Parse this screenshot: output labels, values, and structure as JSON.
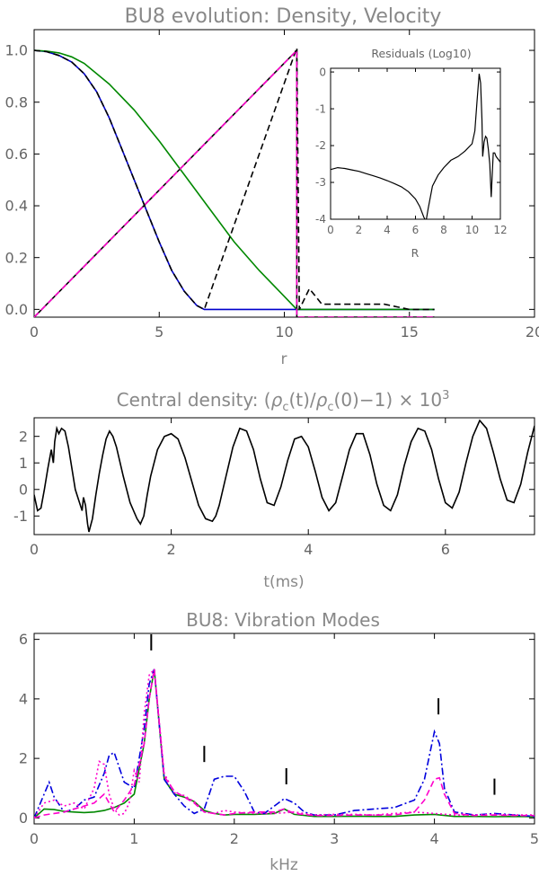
{
  "chart_data": [
    {
      "type": "line",
      "title": "BU8 evolution: Density, Velocity",
      "xlabel": "r",
      "ylabel": "",
      "xlim": [
        0,
        20
      ],
      "ylim": [
        -0.03,
        1.08
      ],
      "xticks": [
        0,
        5,
        10,
        15,
        20
      ],
      "yticks": [
        0.0,
        0.2,
        0.4,
        0.6,
        0.8,
        1.0
      ],
      "grid": false,
      "series": [
        {
          "style": "solid",
          "color": "#0000cc",
          "x": [
            0,
            0.5,
            1,
            1.5,
            2,
            2.5,
            3,
            3.5,
            4,
            4.5,
            5,
            5.5,
            6,
            6.5,
            6.8,
            16
          ],
          "y": [
            1.0,
            0.995,
            0.98,
            0.955,
            0.91,
            0.84,
            0.74,
            0.62,
            0.5,
            0.38,
            0.26,
            0.15,
            0.07,
            0.015,
            0.0,
            0.0
          ]
        },
        {
          "style": "solid",
          "color": "#008800",
          "x": [
            0,
            0.5,
            1,
            1.5,
            2,
            3,
            4,
            5,
            6,
            7,
            8,
            9,
            10,
            10.5,
            16
          ],
          "y": [
            1.0,
            0.997,
            0.99,
            0.975,
            0.95,
            0.87,
            0.77,
            0.65,
            0.52,
            0.39,
            0.26,
            0.15,
            0.05,
            0.0,
            0.0
          ]
        },
        {
          "style": "solid",
          "color": "#000000",
          "x": [
            0,
            10.5,
            10.5,
            16
          ],
          "y": [
            -0.03,
            1.0,
            -0.03,
            -0.03
          ]
        },
        {
          "style": "dashed",
          "color": "#000000",
          "x": [
            0,
            0.5,
            1,
            1.5,
            2,
            2.5,
            3,
            3.5,
            4,
            4.5,
            5,
            5.5,
            6,
            6.5,
            6.8,
            10.5,
            10.6,
            11,
            11.5,
            12,
            13,
            14,
            14.5,
            15,
            16
          ],
          "y": [
            1.0,
            0.995,
            0.98,
            0.955,
            0.91,
            0.84,
            0.74,
            0.62,
            0.5,
            0.38,
            0.26,
            0.15,
            0.07,
            0.015,
            0.0,
            1.01,
            0.0,
            0.08,
            0.02,
            0.02,
            0.02,
            0.02,
            0.01,
            0.0,
            0.0
          ]
        },
        {
          "style": "dashed",
          "color": "#ff00cc",
          "x": [
            0,
            10.5,
            10.5,
            16
          ],
          "y": [
            -0.03,
            1.0,
            -0.03,
            -0.03
          ]
        }
      ]
    },
    {
      "type": "line",
      "title": "Residuals (Log10)",
      "xlabel": "R",
      "ylabel": "",
      "xlim": [
        0,
        12
      ],
      "ylim": [
        -4,
        0.1
      ],
      "xticks": [
        0,
        2,
        4,
        6,
        8,
        10,
        12
      ],
      "yticks": [
        -4,
        -3,
        -2,
        -1,
        0
      ],
      "series": [
        {
          "style": "solid",
          "color": "#000000",
          "x": [
            0,
            0.5,
            1,
            1.5,
            2,
            2.5,
            3,
            3.5,
            4,
            4.5,
            5,
            5.5,
            6,
            6.3,
            6.6,
            6.75,
            6.9,
            7.2,
            7.6,
            8,
            8.5,
            9,
            9.5,
            10,
            10.2,
            10.35,
            10.5,
            10.6,
            10.7,
            10.75,
            10.85,
            10.95,
            11.05,
            11.15,
            11.25,
            11.35,
            11.45,
            11.5,
            11.6,
            11.7,
            11.8,
            11.9,
            12
          ],
          "y": [
            -2.65,
            -2.6,
            -2.62,
            -2.66,
            -2.7,
            -2.76,
            -2.82,
            -2.88,
            -2.95,
            -3.03,
            -3.12,
            -3.25,
            -3.45,
            -3.65,
            -3.95,
            -4.05,
            -3.7,
            -3.1,
            -2.8,
            -2.6,
            -2.4,
            -2.3,
            -2.15,
            -1.95,
            -1.6,
            -0.8,
            -0.05,
            -0.3,
            -1.3,
            -2.3,
            -1.9,
            -1.75,
            -1.8,
            -2.1,
            -2.5,
            -3.4,
            -2.6,
            -2.2,
            -2.2,
            -2.3,
            -2.35,
            -2.4,
            -2.45
          ]
        }
      ]
    },
    {
      "type": "line",
      "title": "Central density:  (ρc(t)/ρc(0)−1) × 10³",
      "title_rich": {
        "prefix": "Central density:  (",
        "rho1": "ρ",
        "sub1": "c",
        "mid": "(t)/",
        "rho2": "ρ",
        "sub2": "c",
        "suffix": "(0)−1) × 10",
        "sup": "3"
      },
      "xlabel": "t(ms)",
      "ylabel": "",
      "xlim": [
        0,
        7.3
      ],
      "ylim": [
        -1.7,
        2.7
      ],
      "xticks": [
        0,
        2,
        4,
        6
      ],
      "yticks": [
        -1,
        0,
        1,
        2
      ],
      "series": [
        {
          "style": "solid",
          "color": "#000000",
          "x": [
            0,
            0.05,
            0.1,
            0.15,
            0.2,
            0.25,
            0.28,
            0.3,
            0.33,
            0.36,
            0.4,
            0.45,
            0.5,
            0.55,
            0.6,
            0.65,
            0.7,
            0.72,
            0.75,
            0.78,
            0.8,
            0.85,
            0.9,
            0.95,
            1.0,
            1.05,
            1.1,
            1.15,
            1.2,
            1.3,
            1.4,
            1.5,
            1.55,
            1.6,
            1.65,
            1.7,
            1.8,
            1.9,
            2.0,
            2.1,
            2.2,
            2.3,
            2.4,
            2.5,
            2.6,
            2.65,
            2.7,
            2.8,
            2.9,
            3.0,
            3.1,
            3.2,
            3.3,
            3.4,
            3.5,
            3.6,
            3.7,
            3.8,
            3.9,
            4.0,
            4.1,
            4.2,
            4.3,
            4.4,
            4.5,
            4.6,
            4.7,
            4.8,
            4.9,
            5.0,
            5.1,
            5.2,
            5.3,
            5.4,
            5.5,
            5.6,
            5.7,
            5.8,
            5.9,
            6.0,
            6.1,
            6.2,
            6.3,
            6.4,
            6.5,
            6.6,
            6.7,
            6.8,
            6.9,
            7.0,
            7.1,
            7.2,
            7.3
          ],
          "y": [
            -0.2,
            -0.8,
            -0.7,
            0.0,
            0.8,
            1.5,
            1.0,
            1.8,
            2.3,
            2.1,
            2.3,
            2.2,
            1.6,
            0.8,
            0.0,
            -0.4,
            -0.8,
            -0.3,
            -0.6,
            -1.3,
            -1.6,
            -1.1,
            -0.2,
            0.6,
            1.3,
            1.9,
            2.2,
            2.0,
            1.6,
            0.5,
            -0.5,
            -1.1,
            -1.3,
            -1.0,
            -0.2,
            0.5,
            1.5,
            2.0,
            2.1,
            1.9,
            1.2,
            0.3,
            -0.6,
            -1.1,
            -1.2,
            -1.0,
            -0.6,
            0.5,
            1.6,
            2.3,
            2.2,
            1.5,
            0.4,
            -0.5,
            -0.6,
            0.1,
            1.1,
            1.9,
            2.0,
            1.6,
            0.7,
            -0.3,
            -0.8,
            -0.5,
            0.5,
            1.5,
            2.1,
            2.1,
            1.3,
            0.2,
            -0.6,
            -0.8,
            -0.2,
            0.9,
            1.8,
            2.3,
            2.2,
            1.5,
            0.4,
            -0.5,
            -0.7,
            -0.1,
            1.0,
            2.0,
            2.6,
            2.3,
            1.4,
            0.4,
            -0.4,
            -0.5,
            0.2,
            1.4,
            2.4
          ]
        }
      ]
    },
    {
      "type": "line",
      "title": "BU8: Vibration Modes",
      "xlabel": "kHz",
      "ylabel": "",
      "xlim": [
        0,
        5
      ],
      "ylim": [
        -0.2,
        6.2
      ],
      "xticks": [
        0,
        1,
        2,
        3,
        4,
        5
      ],
      "yticks": [
        0,
        2,
        4,
        6
      ],
      "annotations": {
        "marker": "|",
        "x": [
          1.17,
          1.7,
          2.52,
          4.04,
          4.6
        ],
        "y": [
          5.9,
          2.15,
          1.4,
          3.75,
          1.05
        ]
      },
      "series": [
        {
          "style": "solid",
          "color": "#008800",
          "x": [
            0,
            0.1,
            0.2,
            0.3,
            0.4,
            0.5,
            0.6,
            0.7,
            0.8,
            0.9,
            1.0,
            1.1,
            1.15,
            1.2,
            1.3,
            1.4,
            1.5,
            1.6,
            1.7,
            1.8,
            1.9,
            2.0,
            2.2,
            2.4,
            2.5,
            2.6,
            2.8,
            3.0,
            3.2,
            3.4,
            3.6,
            3.8,
            4.0,
            4.2,
            4.4,
            4.6,
            4.8,
            5.0
          ],
          "y": [
            0,
            0.3,
            0.28,
            0.22,
            0.2,
            0.18,
            0.2,
            0.25,
            0.35,
            0.5,
            0.8,
            2.5,
            4.0,
            5.0,
            1.3,
            0.8,
            0.7,
            0.55,
            0.25,
            0.15,
            0.1,
            0.12,
            0.12,
            0.15,
            0.3,
            0.12,
            0.05,
            0.05,
            0.06,
            0.05,
            0.05,
            0.1,
            0.12,
            0.05,
            0.05,
            0.04,
            0.05,
            0.04
          ]
        },
        {
          "style": "dashdot",
          "color": "#0000dd",
          "x": [
            0,
            0.1,
            0.15,
            0.2,
            0.3,
            0.4,
            0.5,
            0.6,
            0.7,
            0.75,
            0.8,
            0.85,
            0.9,
            1.0,
            1.1,
            1.15,
            1.2,
            1.3,
            1.4,
            1.5,
            1.6,
            1.7,
            1.8,
            1.9,
            2.0,
            2.1,
            2.2,
            2.3,
            2.4,
            2.5,
            2.6,
            2.7,
            2.8,
            2.9,
            3.0,
            3.2,
            3.4,
            3.6,
            3.8,
            3.9,
            4.0,
            4.05,
            4.1,
            4.2,
            4.3,
            4.4,
            4.6,
            4.8,
            5.0
          ],
          "y": [
            0,
            0.8,
            1.2,
            0.7,
            0.2,
            0.3,
            0.6,
            0.7,
            1.5,
            2.1,
            2.2,
            1.7,
            1.2,
            1.0,
            3.0,
            4.5,
            5.0,
            1.3,
            0.8,
            0.4,
            0.15,
            0.3,
            1.3,
            1.4,
            1.4,
            0.9,
            0.2,
            0.15,
            0.4,
            0.65,
            0.5,
            0.2,
            0.1,
            0.1,
            0.1,
            0.25,
            0.3,
            0.35,
            0.6,
            1.3,
            2.9,
            2.5,
            1.0,
            0.2,
            0.15,
            0.1,
            0.15,
            0.1,
            0.05
          ]
        },
        {
          "style": "dashed",
          "color": "#ff00cc",
          "x": [
            0,
            0.1,
            0.2,
            0.3,
            0.4,
            0.5,
            0.6,
            0.7,
            0.8,
            0.9,
            1.0,
            1.1,
            1.15,
            1.2,
            1.3,
            1.4,
            1.5,
            1.6,
            1.7,
            1.8,
            1.9,
            2.0,
            2.2,
            2.4,
            2.5,
            2.6,
            2.8,
            3.0,
            3.2,
            3.4,
            3.6,
            3.8,
            3.9,
            4.0,
            4.05,
            4.1,
            4.2,
            4.4,
            4.6,
            4.8,
            5.0
          ],
          "y": [
            0,
            0.1,
            0.15,
            0.2,
            0.3,
            0.4,
            0.5,
            0.8,
            0.2,
            0.6,
            1.1,
            2.5,
            4.0,
            5.0,
            1.4,
            0.9,
            0.7,
            0.5,
            0.2,
            0.15,
            0.1,
            0.15,
            0.2,
            0.2,
            0.3,
            0.15,
            0.08,
            0.08,
            0.1,
            0.1,
            0.1,
            0.2,
            0.6,
            1.3,
            1.35,
            0.8,
            0.15,
            0.08,
            0.1,
            0.08,
            0.08
          ]
        },
        {
          "style": "dotted",
          "color": "#ff00cc",
          "x": [
            0,
            0.1,
            0.2,
            0.3,
            0.4,
            0.5,
            0.6,
            0.65,
            0.7,
            0.75,
            0.8,
            0.85,
            0.9,
            0.95,
            1.0,
            1.05,
            1.1,
            1.15,
            1.2,
            1.3,
            1.4,
            1.5,
            1.6,
            1.7,
            1.8,
            1.9,
            2.0,
            2.2,
            2.4,
            2.6,
            2.8,
            3.0,
            3.2,
            3.4,
            3.6,
            3.8,
            4.0,
            4.2,
            4.4,
            4.6,
            4.8,
            5.0
          ],
          "y": [
            0,
            0.5,
            0.6,
            0.4,
            0.5,
            0.3,
            1.0,
            1.9,
            1.8,
            0.8,
            0.3,
            0.1,
            0.15,
            0.5,
            1.6,
            1.2,
            3.5,
            4.8,
            5.0,
            1.5,
            0.85,
            0.75,
            0.55,
            0.2,
            0.15,
            0.25,
            0.2,
            0.15,
            0.15,
            0.2,
            0.1,
            0.12,
            0.12,
            0.1,
            0.15,
            0.2,
            0.15,
            0.1,
            0.1,
            0.12,
            0.1,
            0.1
          ]
        }
      ]
    }
  ]
}
